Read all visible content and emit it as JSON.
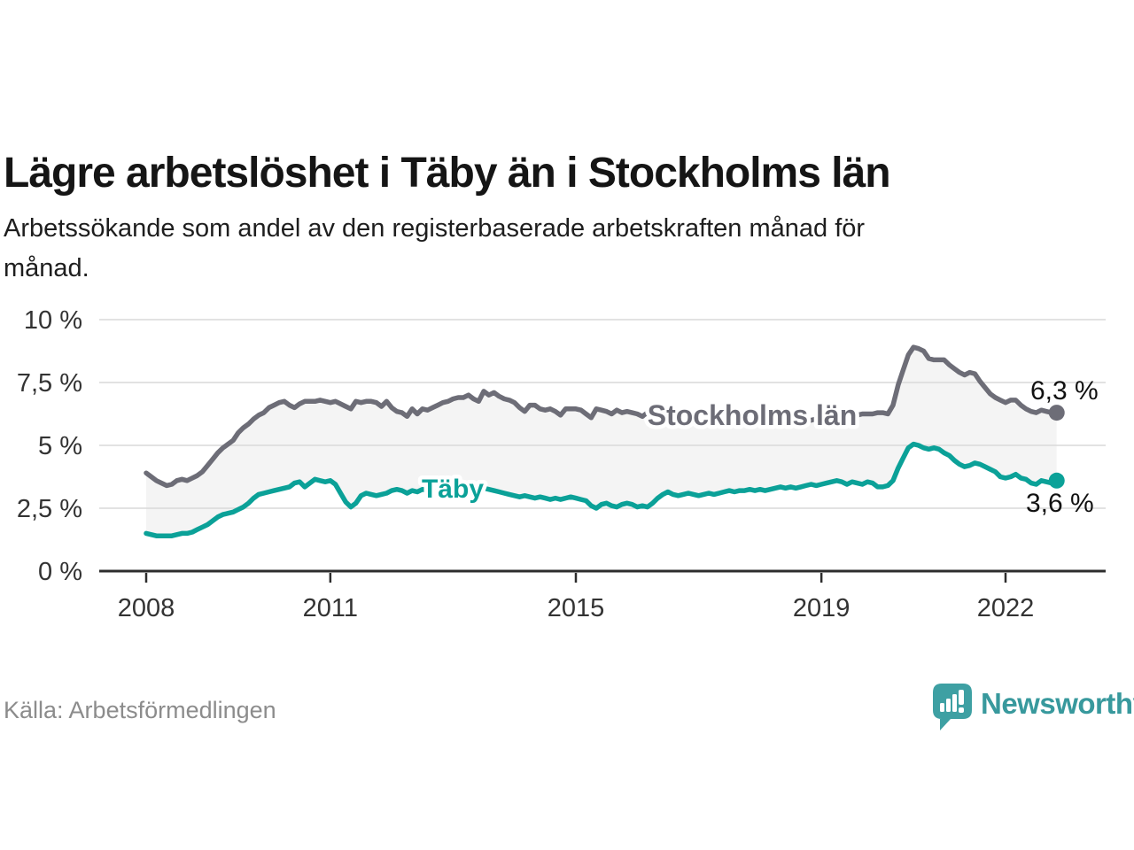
{
  "header": {
    "title": "Lägre arbetslöshet i Täby än i Stockholms län",
    "subtitle_lines": [
      "Arbetssökande som andel av den registerbaserade arbetskraften månad för",
      "månad."
    ]
  },
  "footer": {
    "source": "Källa: Arbetsförmedlingen",
    "brand": "Newsworthy",
    "logo_icon": "newsworthy-speech-bubble-bar-chart-icon"
  },
  "colors": {
    "stockholm_line": "#6d6d77",
    "taby_line": "#0ba198",
    "fill_between": "#f4f4f4",
    "grid": "#d9d9d9",
    "axis": "#2d2d2d",
    "axis_text": "#333333",
    "end_label_text": "#111111",
    "brand_teal": "#38999d"
  },
  "chart_data": {
    "type": "line",
    "title": "Lägre arbetslöshet i Täby än i Stockholms län",
    "subtitle": "Arbetssökande som andel av den registerbaserade arbetskraften månad för månad.",
    "unit": "%",
    "x_start": "2008-01",
    "x_end": "2022-11",
    "x_ticks": [
      2008,
      2011,
      2015,
      2019,
      2022
    ],
    "x_tick_labels": [
      "2008",
      "2011",
      "2015",
      "2019",
      "2022"
    ],
    "y_tick_values": [
      0,
      2.5,
      5,
      7.5,
      10
    ],
    "y_tick_labels": [
      "0 %",
      "2,5 %",
      "5 %",
      "7,5 %",
      "10 %"
    ],
    "ylim": [
      0,
      10
    ],
    "grid": true,
    "legend_position": "inline-labels",
    "series": [
      {
        "name": "Stockholms län",
        "color": "#6d6d77",
        "end_label": "6,3 %",
        "end_value": 6.3,
        "values": [
          3.9,
          3.75,
          3.6,
          3.5,
          3.4,
          3.45,
          3.6,
          3.65,
          3.6,
          3.7,
          3.8,
          3.95,
          4.2,
          4.45,
          4.7,
          4.9,
          5.05,
          5.2,
          5.5,
          5.7,
          5.85,
          6.05,
          6.2,
          6.3,
          6.5,
          6.6,
          6.7,
          6.75,
          6.6,
          6.5,
          6.65,
          6.75,
          6.75,
          6.75,
          6.8,
          6.75,
          6.7,
          6.75,
          6.65,
          6.55,
          6.45,
          6.75,
          6.7,
          6.75,
          6.75,
          6.7,
          6.55,
          6.75,
          6.5,
          6.35,
          6.3,
          6.15,
          6.45,
          6.25,
          6.45,
          6.4,
          6.5,
          6.6,
          6.7,
          6.75,
          6.85,
          6.9,
          6.9,
          7.0,
          6.85,
          6.75,
          7.15,
          7.0,
          7.1,
          6.95,
          6.85,
          6.8,
          6.7,
          6.5,
          6.35,
          6.6,
          6.6,
          6.45,
          6.4,
          6.45,
          6.35,
          6.2,
          6.45,
          6.45,
          6.45,
          6.4,
          6.25,
          6.1,
          6.45,
          6.4,
          6.35,
          6.25,
          6.4,
          6.3,
          6.35,
          6.3,
          6.25,
          6.15,
          6.3,
          6.25,
          6.35,
          6.3,
          6.35,
          6.3,
          6.35,
          6.3,
          6.35,
          6.3,
          6.3,
          6.25,
          6.3,
          6.25,
          6.2,
          6.25,
          6.3,
          6.25,
          6.2,
          6.15,
          6.2,
          6.15,
          6.1,
          6.15,
          6.1,
          6.05,
          6.0,
          6.05,
          6.1,
          6.05,
          6.0,
          5.95,
          6.0,
          6.05,
          6.0,
          6.1,
          6.15,
          6.1,
          6.2,
          6.25,
          6.25,
          6.2,
          6.25,
          6.25,
          6.25,
          6.3,
          6.3,
          6.25,
          6.6,
          7.4,
          8.0,
          8.6,
          8.9,
          8.85,
          8.75,
          8.45,
          8.4,
          8.4,
          8.4,
          8.2,
          8.05,
          7.9,
          7.8,
          7.9,
          7.85,
          7.55,
          7.3,
          7.05,
          6.9,
          6.8,
          6.7,
          6.8,
          6.8,
          6.6,
          6.45,
          6.35,
          6.3,
          6.4,
          6.35,
          6.3,
          6.3
        ]
      },
      {
        "name": "Täby",
        "color": "#0ba198",
        "end_label": "3,6 %",
        "end_value": 3.6,
        "values": [
          1.5,
          1.45,
          1.4,
          1.4,
          1.4,
          1.4,
          1.45,
          1.5,
          1.5,
          1.55,
          1.65,
          1.75,
          1.85,
          2.0,
          2.15,
          2.25,
          2.3,
          2.35,
          2.45,
          2.55,
          2.7,
          2.9,
          3.05,
          3.1,
          3.15,
          3.2,
          3.25,
          3.3,
          3.35,
          3.5,
          3.55,
          3.35,
          3.5,
          3.65,
          3.6,
          3.55,
          3.6,
          3.45,
          3.1,
          2.75,
          2.55,
          2.7,
          3.0,
          3.1,
          3.05,
          3.0,
          3.05,
          3.1,
          3.2,
          3.25,
          3.2,
          3.1,
          3.2,
          3.15,
          3.25,
          3.2,
          3.3,
          3.25,
          3.2,
          3.15,
          3.1,
          3.2,
          3.25,
          3.2,
          3.3,
          3.35,
          3.3,
          3.25,
          3.2,
          3.15,
          3.1,
          3.05,
          3.0,
          2.95,
          3.0,
          2.95,
          2.9,
          2.95,
          2.9,
          2.85,
          2.9,
          2.85,
          2.9,
          2.95,
          2.9,
          2.85,
          2.8,
          2.6,
          2.5,
          2.65,
          2.7,
          2.6,
          2.55,
          2.65,
          2.7,
          2.65,
          2.55,
          2.6,
          2.55,
          2.7,
          2.9,
          3.05,
          3.15,
          3.05,
          3.0,
          3.05,
          3.1,
          3.05,
          3.0,
          3.05,
          3.1,
          3.05,
          3.1,
          3.15,
          3.2,
          3.15,
          3.2,
          3.2,
          3.25,
          3.2,
          3.25,
          3.2,
          3.25,
          3.3,
          3.35,
          3.3,
          3.35,
          3.3,
          3.35,
          3.4,
          3.45,
          3.4,
          3.45,
          3.5,
          3.55,
          3.6,
          3.55,
          3.45,
          3.55,
          3.5,
          3.45,
          3.55,
          3.5,
          3.35,
          3.35,
          3.4,
          3.6,
          4.1,
          4.5,
          4.9,
          5.05,
          5.0,
          4.9,
          4.85,
          4.9,
          4.85,
          4.7,
          4.6,
          4.4,
          4.25,
          4.15,
          4.2,
          4.3,
          4.25,
          4.15,
          4.05,
          3.95,
          3.75,
          3.7,
          3.75,
          3.85,
          3.7,
          3.65,
          3.5,
          3.45,
          3.6,
          3.55,
          3.5,
          3.6
        ]
      }
    ]
  }
}
